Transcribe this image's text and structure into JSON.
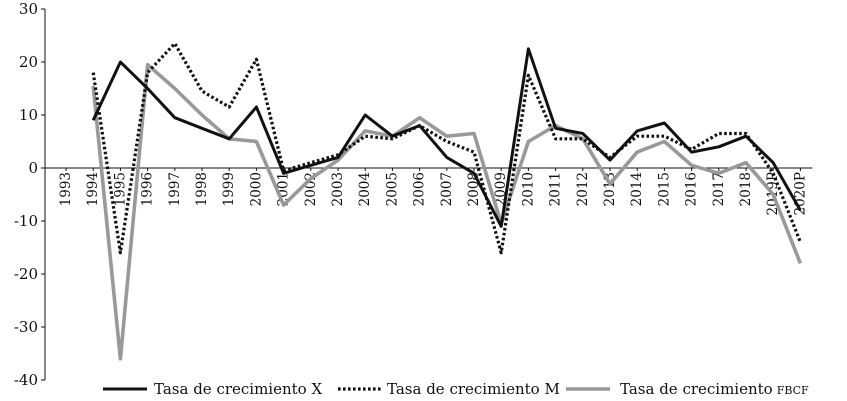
{
  "chart_data": {
    "type": "line",
    "title": "",
    "xlabel": "",
    "ylabel": "",
    "ylim": [
      -40,
      30
    ],
    "yticks": [
      -40,
      -30,
      -20,
      -10,
      0,
      10,
      20,
      30
    ],
    "grid": false,
    "legend_position": "bottom",
    "categories": [
      "1993",
      "1994",
      "1995",
      "1996",
      "1997",
      "1998",
      "1999",
      "2000",
      "2001",
      "2002",
      "2003",
      "2004",
      "2005",
      "2006",
      "2007",
      "2008",
      "2009",
      "2010",
      "2011",
      "2012",
      "2013",
      "2014",
      "2015",
      "2016",
      "2017",
      "2018",
      "2019P",
      "2020P"
    ],
    "series": [
      {
        "name": "Tasa de crecimiento X",
        "style": "solid",
        "color": "#111111",
        "values": [
          null,
          9,
          20,
          15,
          9.5,
          7.5,
          5.5,
          11.5,
          -1,
          0.5,
          2,
          10,
          6,
          8,
          2,
          -1,
          -11,
          22.5,
          7.5,
          6.5,
          1.5,
          7,
          8.5,
          3,
          4,
          6,
          1,
          -8
        ]
      },
      {
        "name": "Tasa de crecimiento M",
        "style": "dotted",
        "color": "#111111",
        "values": [
          null,
          18,
          -16,
          18,
          23.5,
          14.5,
          11.5,
          20.5,
          -0.5,
          1,
          2.5,
          6,
          5.5,
          8,
          5,
          3,
          -16,
          17.5,
          5.5,
          5.5,
          2,
          6,
          6,
          3.5,
          6.5,
          6.5,
          -1,
          -14
        ]
      },
      {
        "name": "Tasa de crecimiento",
        "name_suffix": "FBCF",
        "style": "solid",
        "color": "#999999",
        "values": [
          null,
          15.5,
          -36,
          19.5,
          15,
          10,
          5.5,
          5,
          -7,
          -2,
          1.5,
          7,
          6,
          9.5,
          6,
          6.5,
          -10.5,
          5,
          8,
          5.5,
          -3,
          3,
          5,
          0.5,
          -1,
          1,
          -5,
          -18
        ]
      }
    ]
  }
}
